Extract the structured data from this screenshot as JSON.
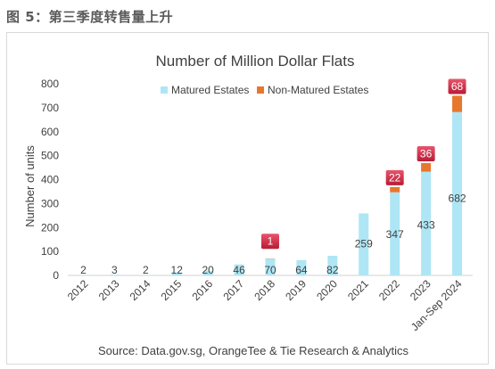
{
  "figure_heading": "图 5：第三季度转售量上升",
  "chart_data": {
    "type": "bar",
    "stacked": true,
    "title": "Number of Million Dollar Flats",
    "xlabel": "",
    "ylabel": "Number of units",
    "ylim": [
      0,
      800
    ],
    "yticks": [
      0,
      100,
      200,
      300,
      400,
      500,
      600,
      700,
      800
    ],
    "grid": false,
    "legend_position": "top",
    "categories": [
      "2012",
      "2013",
      "2014",
      "2015",
      "2016",
      "2017",
      "2018",
      "2019",
      "2020",
      "2021",
      "2022",
      "2023",
      "Jan-Sep 2024"
    ],
    "series": [
      {
        "name": "Matured Estates",
        "color": "#aee6f5",
        "values": [
          2,
          3,
          2,
          12,
          20,
          46,
          70,
          64,
          82,
          259,
          347,
          433,
          682
        ]
      },
      {
        "name": "Non-Matured Estates",
        "color": "#e8772e",
        "values": [
          0,
          0,
          0,
          0,
          0,
          0,
          1,
          0,
          0,
          0,
          22,
          36,
          68
        ]
      }
    ],
    "callout_color": "#cf2140",
    "source": "Source: Data.gov.sg, OrangeTee & Tie Research & Analytics"
  }
}
